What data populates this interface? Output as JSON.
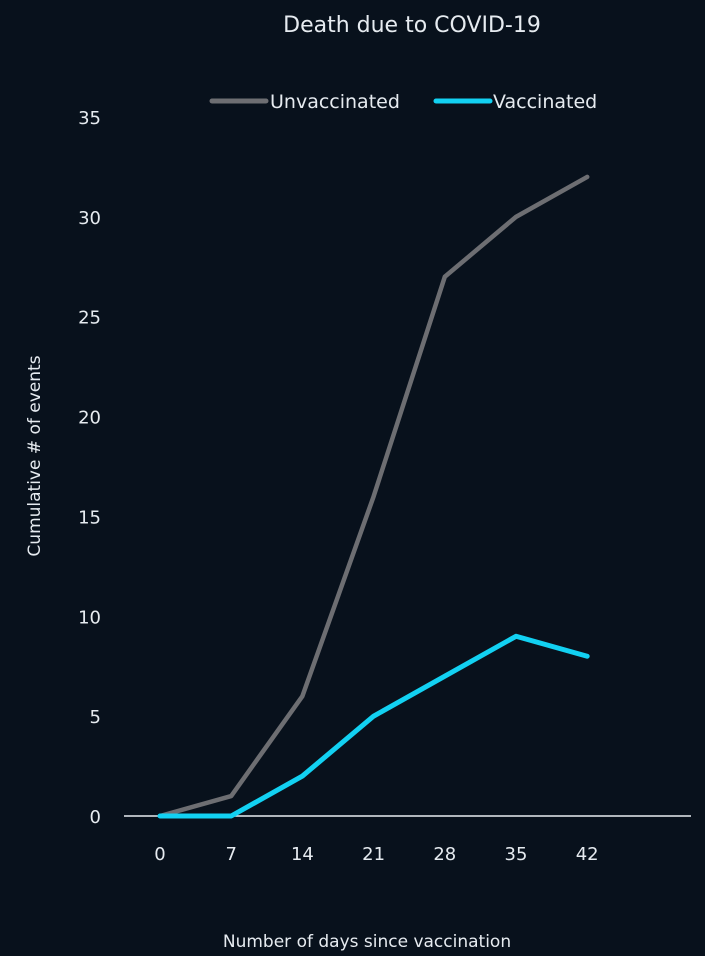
{
  "chart_data": {
    "type": "line",
    "title": "Death due to COVID-19",
    "xlabel": "Number of days since vaccination",
    "ylabel": "Cumulative # of events",
    "x": [
      0,
      7,
      14,
      21,
      28,
      35,
      42
    ],
    "x_tick_labels": [
      "0",
      "7",
      "14",
      "21",
      "28",
      "35",
      "42"
    ],
    "ylim": [
      0,
      35
    ],
    "y_tick_labels": [
      "0",
      "5",
      "10",
      "15",
      "20",
      "25",
      "30",
      "35"
    ],
    "grid": false,
    "legend_position": "top",
    "series": [
      {
        "name": "Unvaccinated",
        "color": "#6d6e72",
        "values": [
          0,
          1,
          6,
          16,
          27,
          30,
          32
        ]
      },
      {
        "name": "Vaccinated",
        "color": "#12d1f2",
        "values": [
          0,
          0,
          2,
          5,
          7,
          9,
          8
        ]
      }
    ]
  },
  "style": {
    "background": "#08111c",
    "axis_color": "#e8edf2"
  }
}
